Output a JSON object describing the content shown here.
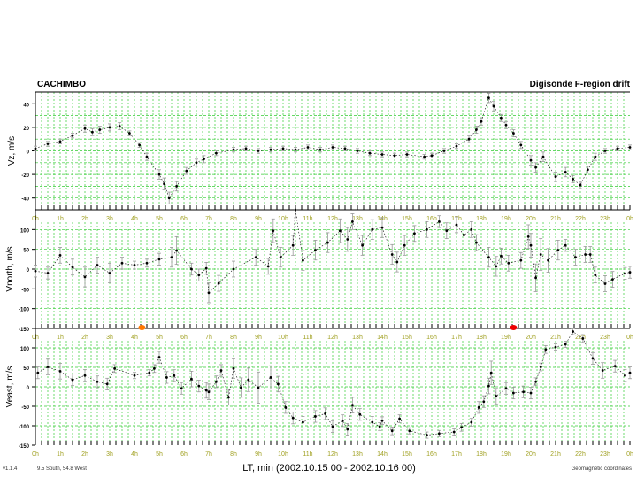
{
  "header": {
    "station": "CACHIMBO",
    "product": "Digisonde F-region drift"
  },
  "footer": {
    "version": "v1.1.4",
    "location": "9.5 South, 54.8 West",
    "xlabel": "LT, min (2002.10.15 00 - 2002.10.16 00)",
    "coordinates": "Geomagnetic coordinates"
  },
  "colors": {
    "grid": "#33cc33",
    "hour_label": "#a0a020",
    "data": "#000000",
    "error_bar": "#999999",
    "marker_orange": "#ff7700",
    "marker_red": "#ee0000"
  },
  "chart_data": [
    {
      "type": "scatter",
      "ylabel": "Vz, m/s",
      "ylim": [
        -50,
        50
      ],
      "xlim": [
        0,
        24
      ],
      "y_ticks": [
        40,
        20,
        0,
        -20,
        -40
      ],
      "grid": true,
      "x": [
        0,
        0.5,
        1,
        1.5,
        2,
        2.3,
        2.6,
        3,
        3.4,
        3.8,
        4.2,
        4.5,
        5,
        5.2,
        5.4,
        5.7,
        6.1,
        6.5,
        6.8,
        7.3,
        8,
        8.5,
        9,
        9.5,
        10,
        10.5,
        11,
        11.5,
        12,
        12.5,
        13,
        13.5,
        14,
        14.5,
        15,
        15.7,
        16,
        16.5,
        17,
        17.5,
        17.8,
        18,
        18.3,
        18.5,
        18.8,
        19,
        19.3,
        19.6,
        20,
        20.2,
        20.5,
        21,
        21.4,
        21.7,
        22,
        22.3,
        22.6,
        23,
        23.5,
        24
      ],
      "y": [
        2,
        6,
        8,
        13,
        19,
        16,
        18,
        20,
        21,
        15,
        5,
        -5,
        -20,
        -28,
        -40,
        -30,
        -17,
        -10,
        -7,
        -2,
        1,
        2,
        0,
        1,
        2,
        1,
        3,
        1,
        3,
        2,
        0,
        -2,
        -3,
        -4,
        -3,
        -5,
        -4,
        0,
        4,
        10,
        18,
        25,
        45,
        38,
        28,
        22,
        15,
        5,
        -8,
        -14,
        -5,
        -22,
        -18,
        -24,
        -29,
        -16,
        -5,
        0,
        2,
        3
      ],
      "err": [
        2,
        2,
        2,
        2,
        3,
        3,
        3,
        3,
        3,
        2,
        2,
        3,
        4,
        5,
        5,
        4,
        3,
        3,
        3,
        2,
        2,
        2,
        2,
        2,
        2,
        2,
        2,
        2,
        2,
        2,
        2,
        2,
        2,
        2,
        2,
        2,
        2,
        2,
        2,
        3,
        3,
        3,
        4,
        4,
        3,
        3,
        3,
        3,
        4,
        4,
        4,
        4,
        4,
        3,
        3,
        3,
        3,
        2,
        2,
        2
      ]
    },
    {
      "type": "scatter",
      "ylabel": "Vnorth, m/s",
      "ylim": [
        -150,
        150
      ],
      "xlim": [
        0,
        24
      ],
      "y_ticks": [
        100,
        50,
        0,
        -50,
        -100,
        -150
      ],
      "grid": true,
      "x": [
        0,
        0.5,
        1,
        1.5,
        2,
        2.5,
        3,
        3.5,
        4,
        4.5,
        5,
        5.5,
        5.7,
        6.3,
        6.6,
        6.9,
        7,
        7.4,
        8,
        8.9,
        9.4,
        9.6,
        9.9,
        10.4,
        10.5,
        10.8,
        11.3,
        11.8,
        12.3,
        12.6,
        12.8,
        13.2,
        13.6,
        14,
        14.4,
        14.6,
        14.9,
        15.3,
        15.8,
        16.3,
        16.6,
        17,
        17.3,
        17.6,
        17.8,
        18.3,
        18.6,
        18.8,
        19.1,
        19.6,
        19.9,
        20,
        20.2,
        20.4,
        20.7,
        21.1,
        21.4,
        21.8,
        22.2,
        22.4,
        22.6,
        23,
        23.3,
        23.8,
        24
      ],
      "y": [
        -5,
        -10,
        35,
        5,
        -20,
        10,
        -10,
        15,
        10,
        15,
        25,
        30,
        47,
        0,
        -15,
        2,
        -60,
        -36,
        0,
        30,
        7,
        97,
        30,
        60,
        150,
        22,
        48,
        67,
        97,
        75,
        120,
        60,
        100,
        105,
        37,
        18,
        60,
        90,
        100,
        120,
        97,
        112,
        86,
        100,
        67,
        30,
        7,
        33,
        15,
        22,
        82,
        60,
        -22,
        37,
        22,
        48,
        60,
        30,
        37,
        37,
        -15,
        -37,
        -26,
        -11,
        -8
      ],
      "err": [
        15,
        15,
        20,
        20,
        25,
        20,
        25,
        15,
        10,
        10,
        15,
        25,
        35,
        15,
        15,
        15,
        25,
        20,
        20,
        20,
        20,
        30,
        25,
        25,
        20,
        25,
        25,
        25,
        30,
        30,
        20,
        25,
        25,
        25,
        25,
        25,
        25,
        20,
        20,
        15,
        20,
        20,
        20,
        20,
        20,
        25,
        25,
        20,
        20,
        20,
        30,
        30,
        35,
        40,
        30,
        25,
        15,
        20,
        20,
        20,
        20,
        20,
        20,
        15,
        15
      ]
    },
    {
      "type": "scatter",
      "ylabel": "Veast, m/s",
      "ylim": [
        -150,
        150
      ],
      "xlim": [
        0,
        24
      ],
      "y_ticks": [
        100,
        50,
        0,
        -50,
        -100,
        -150
      ],
      "grid": true,
      "x": [
        0.1,
        0.5,
        1,
        1.5,
        2,
        2.5,
        2.9,
        3.2,
        4,
        4.6,
        4.8,
        5,
        5.3,
        5.6,
        5.9,
        6.3,
        6.6,
        6.9,
        7,
        7.3,
        7.5,
        7.8,
        8,
        8.3,
        8.6,
        9,
        9.5,
        9.8,
        10.1,
        10.4,
        10.8,
        11.3,
        11.7,
        12,
        12.4,
        12.6,
        12.8,
        13.1,
        13.6,
        13.9,
        14,
        14.4,
        14.7,
        15.1,
        15.8,
        16.3,
        16.9,
        17.2,
        17.6,
        17.9,
        18.1,
        18.3,
        18.4,
        18.6,
        19,
        19.3,
        19.7,
        20,
        20.2,
        20.4,
        20.6,
        21,
        21.4,
        21.7,
        22.1,
        22.5,
        22.9,
        23.4,
        23.8,
        24
      ],
      "y": [
        36,
        51,
        40,
        18,
        29,
        13,
        7,
        47,
        29,
        36,
        47,
        76,
        24,
        29,
        -4,
        20,
        2,
        -9,
        -13,
        13,
        42,
        -27,
        47,
        -2,
        18,
        -2,
        24,
        7,
        -53,
        -80,
        -91,
        -76,
        -69,
        -102,
        -87,
        -109,
        -47,
        -71,
        -91,
        -102,
        -87,
        -113,
        -82,
        -113,
        -124,
        -120,
        -116,
        -104,
        -91,
        -53,
        -38,
        2,
        36,
        -24,
        -4,
        -16,
        -13,
        -16,
        13,
        51,
        96,
        102,
        109,
        142,
        124,
        73,
        42,
        53,
        29,
        36
      ],
      "err": [
        15,
        20,
        20,
        15,
        15,
        15,
        15,
        10,
        8,
        8,
        10,
        15,
        15,
        15,
        15,
        20,
        15,
        20,
        20,
        15,
        15,
        20,
        25,
        25,
        30,
        40,
        30,
        20,
        15,
        15,
        15,
        15,
        15,
        15,
        15,
        15,
        20,
        15,
        15,
        10,
        10,
        10,
        10,
        8,
        8,
        8,
        8,
        10,
        10,
        15,
        15,
        20,
        30,
        20,
        15,
        15,
        15,
        15,
        10,
        10,
        10,
        8,
        8,
        8,
        10,
        15,
        20,
        15,
        15,
        15
      ]
    }
  ],
  "x_tick_labels": [
    "0h",
    "1h",
    "2h",
    "3h",
    "4h",
    "5h",
    "6h",
    "7h",
    "8h",
    "9h",
    "10h",
    "11h",
    "12h",
    "13h",
    "14h",
    "15h",
    "16h",
    "17h",
    "18h",
    "19h",
    "20h",
    "21h",
    "22h",
    "23h",
    "0h"
  ],
  "markers": [
    {
      "panel": 1,
      "hour": 4.3,
      "value": -150,
      "color": "#ff7700"
    },
    {
      "panel": 1,
      "hour": 19.3,
      "value": -150,
      "color": "#ee0000"
    }
  ]
}
